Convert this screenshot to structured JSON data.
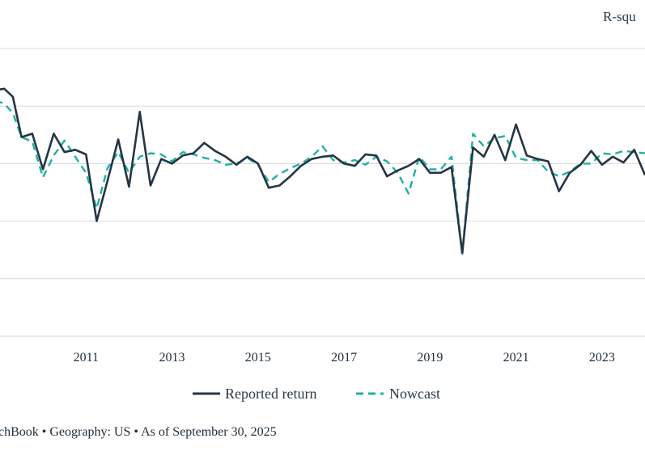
{
  "chart_data": {
    "type": "line",
    "corner_label": "R-squ",
    "x_ticks": [
      "2011",
      "2013",
      "2015",
      "2017",
      "2019",
      "2021",
      "2023"
    ],
    "xlim": [
      2009.0,
      2024.0
    ],
    "ylim": [
      -0.15,
      0.1
    ],
    "grid_values": [
      -0.15,
      -0.1,
      -0.05,
      0.0,
      0.05,
      0.1
    ],
    "grid": true,
    "legend_position": "bottom-center",
    "colors": {
      "reported": "#243545",
      "nowcast": "#20b0a0",
      "grid": "#d9d9d9"
    },
    "x": [
      2008.9,
      2009.1,
      2009.3,
      2009.5,
      2009.75,
      2010.0,
      2010.25,
      2010.5,
      2010.75,
      2011.0,
      2011.25,
      2011.5,
      2011.75,
      2012.0,
      2012.25,
      2012.5,
      2012.75,
      2013.0,
      2013.25,
      2013.5,
      2013.75,
      2014.0,
      2014.25,
      2014.5,
      2014.75,
      2015.0,
      2015.25,
      2015.5,
      2015.75,
      2016.0,
      2016.25,
      2016.5,
      2016.75,
      2017.0,
      2017.25,
      2017.5,
      2017.75,
      2018.0,
      2018.25,
      2018.5,
      2018.75,
      2019.0,
      2019.25,
      2019.5,
      2019.75,
      2020.0,
      2020.25,
      2020.5,
      2020.75,
      2021.0,
      2021.25,
      2021.5,
      2021.75,
      2022.0,
      2022.25,
      2022.5,
      2022.75,
      2023.0,
      2023.25,
      2023.5,
      2023.75,
      2024.0
    ],
    "series": [
      {
        "name": "Reported return",
        "values": [
          0.064,
          0.065,
          0.058,
          0.023,
          0.026,
          -0.005,
          0.026,
          0.01,
          0.012,
          0.008,
          -0.05,
          -0.015,
          0.021,
          -0.02,
          0.045,
          -0.019,
          0.004,
          0.0,
          0.007,
          0.009,
          0.018,
          0.011,
          0.006,
          -0.001,
          0.006,
          0.0,
          -0.021,
          -0.019,
          -0.011,
          -0.002,
          0.004,
          0.006,
          0.007,
          0.0,
          -0.002,
          0.008,
          0.007,
          -0.011,
          -0.006,
          -0.002,
          0.004,
          -0.008,
          -0.008,
          -0.003,
          -0.078,
          0.014,
          0.006,
          0.025,
          0.003,
          0.034,
          0.007,
          0.004,
          0.002,
          -0.024,
          -0.008,
          -0.001,
          0.011,
          -0.001,
          0.006,
          0.001,
          0.012,
          -0.01
        ]
      },
      {
        "name": "Nowcast",
        "values": [
          0.055,
          0.052,
          0.044,
          0.023,
          0.019,
          -0.012,
          0.007,
          0.02,
          0.006,
          -0.008,
          -0.039,
          -0.004,
          0.01,
          -0.008,
          0.006,
          0.009,
          0.008,
          0.002,
          0.01,
          0.008,
          0.005,
          0.003,
          -0.001,
          0.0,
          0.005,
          -0.001,
          -0.016,
          -0.009,
          -0.004,
          0.0,
          0.006,
          0.015,
          0.003,
          0.001,
          0.003,
          -0.001,
          0.006,
          0.002,
          -0.008,
          -0.026,
          0.006,
          -0.005,
          -0.005,
          0.006,
          -0.078,
          0.026,
          0.015,
          0.022,
          0.024,
          0.005,
          0.003,
          0.003,
          -0.007,
          -0.011,
          -0.007,
          0.0,
          0.0,
          0.009,
          0.008,
          0.011,
          0.01,
          0.009
        ]
      }
    ]
  },
  "legend": {
    "reported_label": "Reported return",
    "nowcast_label": "Nowcast"
  },
  "source_text": "chBook • Geography: US • As of September 30, 2025"
}
